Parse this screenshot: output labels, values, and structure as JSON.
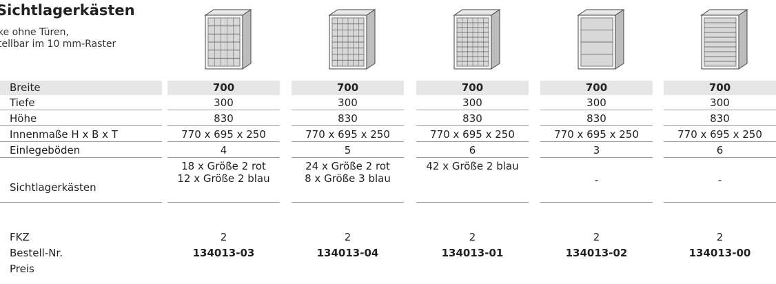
{
  "header": {
    "title": "Sichtlagerkästen",
    "subtitle": [
      "ke ohne Türen,",
      "tellbar im 10 mm-Raster"
    ]
  },
  "table": {
    "rows": [
      {
        "label": "Breite",
        "cells": [
          "700",
          "700",
          "700",
          "700",
          "700"
        ]
      },
      {
        "label": "Tiefe",
        "cells": [
          "300",
          "300",
          "300",
          "300",
          "300"
        ]
      },
      {
        "label": "Höhe",
        "cells": [
          "830",
          "830",
          "830",
          "830",
          "830"
        ]
      },
      {
        "label": "Innenmaße H x B x T",
        "cells": [
          "770 x 695 x 250",
          "770 x 695 x 250",
          "770 x 695 x 250",
          "770 x 695 x 250",
          "770 x 695 x 250"
        ]
      },
      {
        "label": "Einlegeböden",
        "cells": [
          "4",
          "5",
          "6",
          "3",
          "6"
        ]
      },
      {
        "label": "Sichtlagerkästen",
        "cells": [
          [
            "18 x Größe 2 rot",
            "12 x Größe 2 blau"
          ],
          [
            "24 x Größe 2 rot",
            "8 x Größe 3 blau"
          ],
          [
            "42 x Größe 2 blau"
          ],
          [
            "-"
          ],
          [
            "-"
          ]
        ]
      },
      {
        "label": "FKZ",
        "cells": [
          "2",
          "2",
          "2",
          "2",
          "2"
        ]
      },
      {
        "label": "Bestell-Nr.",
        "cells": [
          "134013-03",
          "134013-04",
          "134013-01",
          "134013-02",
          "134013-00"
        ]
      },
      {
        "label": "Preis"
      }
    ]
  }
}
